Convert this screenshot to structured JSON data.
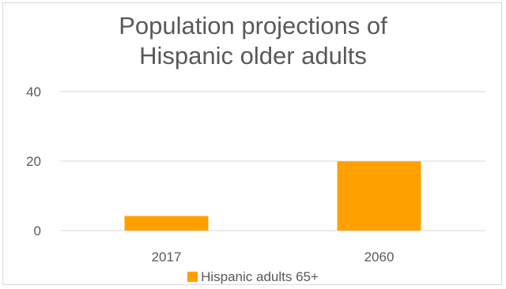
{
  "chart_data": {
    "type": "bar",
    "title": "Population projections of\nHispanic older adults",
    "xlabel": "",
    "ylabel": "",
    "categories": [
      "2017",
      "2060"
    ],
    "series": [
      {
        "name": "Hispanic adults 65+",
        "values": [
          4.2,
          19.9
        ]
      }
    ],
    "ylim": [
      0,
      40
    ],
    "yticks": [
      "0",
      "20",
      "40"
    ],
    "grid": true,
    "legend": "bottom",
    "colors": {
      "bar": "#ffa000",
      "grid": "#d9d9d9",
      "text": "#595959"
    }
  }
}
